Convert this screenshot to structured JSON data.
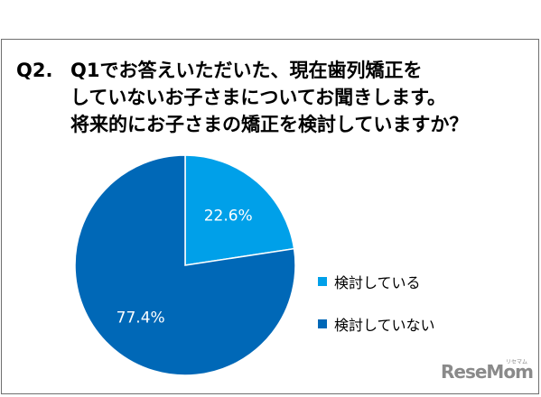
{
  "question": {
    "number": "Q2.",
    "lines": [
      "Q1でお答えいただいた、現在歯列矯正を",
      "していないお子さまについてお聞きします。",
      "将来的にお子さまの矯正を検討していますか？"
    ]
  },
  "chart_data": {
    "type": "pie",
    "slices": [
      {
        "label": "検討している",
        "value": 22.6,
        "display": "22.6%",
        "color": "#00a0e9"
      },
      {
        "label": "検討していない",
        "value": 77.4,
        "display": "77.4%",
        "color": "#0068b7"
      }
    ],
    "start_angle_deg": 0,
    "direction": "clockwise",
    "legend_position": "right"
  },
  "logo": {
    "text": "ReseMom",
    "small": "リセマム"
  }
}
